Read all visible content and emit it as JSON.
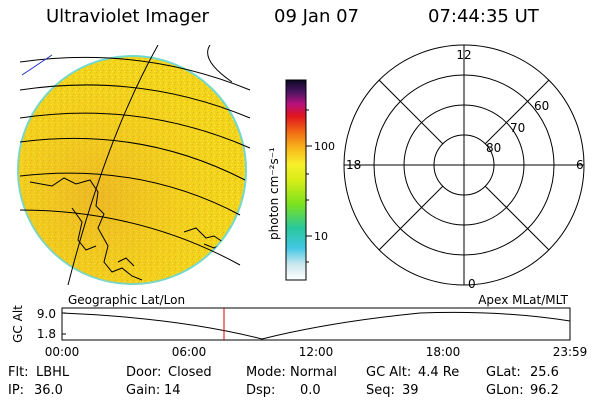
{
  "header": {
    "title": "Ultraviolet Imager",
    "date": "09 Jan 07",
    "time": "07:44:35 UT"
  },
  "colorbar": {
    "unit_label": "photon cm⁻²s⁻¹",
    "tick_labels": [
      "100",
      "10"
    ]
  },
  "polar_plot": {
    "mlt_labels": [
      "12",
      "18",
      "6",
      "0"
    ],
    "mlat_labels": [
      "60",
      "70",
      "80"
    ]
  },
  "timeline": {
    "left_label": "Geographic Lat/Lon",
    "right_label": "Apex MLat/MLT",
    "axis_label": "GC Alt",
    "y_ticks": [
      "9.0",
      "1.8"
    ],
    "x_ticks": [
      "00:00",
      "06:00",
      "12:00",
      "18:00",
      "23:59"
    ]
  },
  "info": {
    "row1": [
      {
        "key": "Flt:",
        "value": "LBHL"
      },
      {
        "key": "Door:",
        "value": "Closed"
      },
      {
        "key": "Mode:",
        "value": "Normal"
      },
      {
        "key": "GC Alt:",
        "value": "4.4 Re"
      },
      {
        "key": "GLat:",
        "value": "25.6"
      }
    ],
    "row2": [
      {
        "key": "IP:",
        "value": "36.0"
      },
      {
        "key": "Gain:",
        "value": "14"
      },
      {
        "key": "Dsp:",
        "value": "0.0"
      },
      {
        "key": "Seq:",
        "value": "39"
      },
      {
        "key": "GLon:",
        "value": "96.2"
      }
    ]
  },
  "colors": {
    "image_fill": "#F4DC1E",
    "image_edge": "#6FD9D0",
    "marker": "#E00000"
  }
}
